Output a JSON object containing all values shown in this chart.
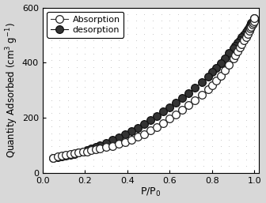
{
  "title": "",
  "xlabel": "P/P$_0$",
  "ylabel": "Quantity Adsorbed (cm$^3$ g$^{-1}$)",
  "xlim": [
    0.0,
    1.02
  ],
  "ylim": [
    0,
    600
  ],
  "xticks": [
    0.0,
    0.2,
    0.4,
    0.6,
    0.8,
    1.0
  ],
  "yticks": [
    0,
    200,
    400,
    600
  ],
  "legend_labels": [
    "Absorption",
    "desorption"
  ],
  "absorption_x": [
    0.05,
    0.07,
    0.09,
    0.11,
    0.13,
    0.15,
    0.17,
    0.19,
    0.21,
    0.23,
    0.25,
    0.27,
    0.3,
    0.33,
    0.36,
    0.39,
    0.42,
    0.45,
    0.48,
    0.51,
    0.54,
    0.57,
    0.6,
    0.63,
    0.66,
    0.69,
    0.72,
    0.75,
    0.78,
    0.8,
    0.82,
    0.84,
    0.86,
    0.88,
    0.9,
    0.91,
    0.92,
    0.93,
    0.94,
    0.95,
    0.96,
    0.97,
    0.975,
    0.98,
    0.985,
    0.99,
    0.995,
    0.998,
    1.0
  ],
  "absorption_y": [
    55,
    60,
    63,
    66,
    68,
    71,
    73,
    76,
    78,
    82,
    85,
    89,
    93,
    98,
    105,
    112,
    120,
    130,
    141,
    153,
    166,
    180,
    196,
    212,
    228,
    245,
    263,
    282,
    302,
    318,
    334,
    352,
    372,
    393,
    416,
    428,
    440,
    455,
    468,
    480,
    492,
    505,
    515,
    525,
    530,
    538,
    545,
    550,
    560
  ],
  "desorption_x": [
    1.0,
    0.998,
    0.995,
    0.99,
    0.985,
    0.98,
    0.975,
    0.97,
    0.96,
    0.95,
    0.94,
    0.93,
    0.92,
    0.91,
    0.9,
    0.88,
    0.86,
    0.84,
    0.82,
    0.8,
    0.78,
    0.75,
    0.72,
    0.69,
    0.66,
    0.63,
    0.6,
    0.57,
    0.54,
    0.51,
    0.48,
    0.45,
    0.42,
    0.39,
    0.36,
    0.33,
    0.3,
    0.27,
    0.25,
    0.23,
    0.21,
    0.19,
    0.17,
    0.15,
    0.13,
    0.11,
    0.09,
    0.07,
    0.05
  ],
  "desorption_y": [
    560,
    558,
    554,
    548,
    543,
    537,
    530,
    522,
    512,
    502,
    492,
    482,
    472,
    462,
    452,
    435,
    416,
    398,
    382,
    365,
    348,
    328,
    308,
    289,
    271,
    254,
    238,
    222,
    206,
    191,
    177,
    164,
    152,
    140,
    129,
    119,
    109,
    100,
    94,
    88,
    82,
    77,
    73,
    69,
    65,
    62,
    59,
    57,
    55
  ],
  "absorption_color": "#333333",
  "desorption_color": "#111111",
  "markersize": 7,
  "linewidth": 0.8,
  "background_color": "#ffffff",
  "dot_color": "#c8c8c8",
  "font_size_labels": 9,
  "font_size_ticks": 8,
  "font_size_legend": 8
}
